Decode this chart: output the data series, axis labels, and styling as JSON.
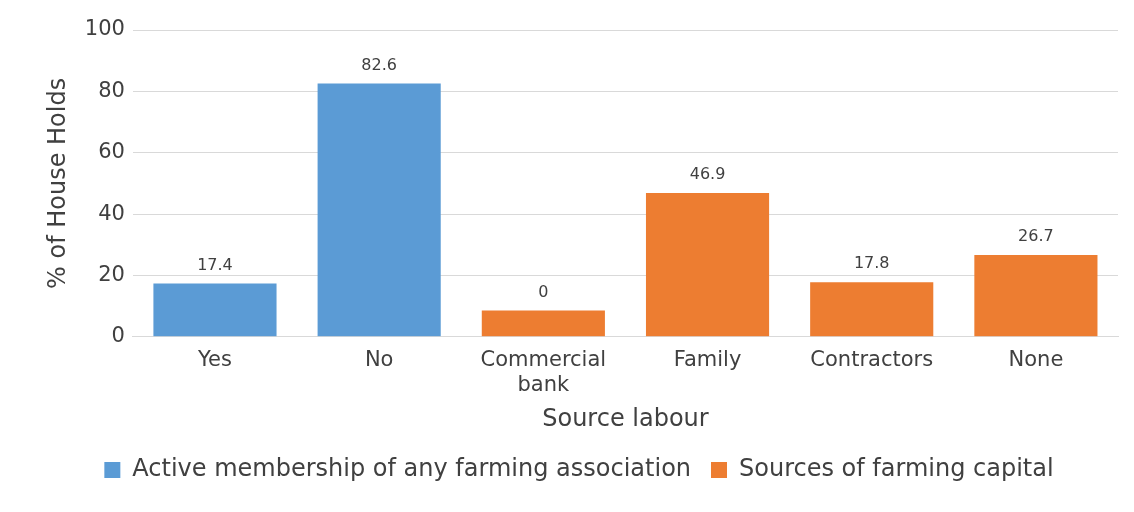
{
  "chart_data": {
    "type": "bar",
    "xlabel": "Source labour",
    "ylabel": "% of House Holds",
    "categories": [
      "Yes",
      "No",
      "Commercial bank",
      "Family",
      "Contractors",
      "None"
    ],
    "series": [
      {
        "name": "Active membership of any farming association",
        "color": "#5b9bd5",
        "values": [
          17.4,
          82.6,
          null,
          null,
          null,
          null
        ],
        "value_labels": [
          "17.4",
          "82.6",
          null,
          null,
          null,
          null
        ]
      },
      {
        "name": "Sources of farming capital",
        "color": "#ed7d31",
        "values": [
          null,
          null,
          8.6,
          46.9,
          17.8,
          26.7
        ],
        "value_labels": [
          null,
          null,
          null,
          "46.9",
          "17.8",
          "26.7"
        ]
      }
    ],
    "annotations": [
      {
        "text": "0",
        "x": "Commercial bank",
        "y": 8.6
      }
    ],
    "ylim": [
      0,
      100
    ],
    "yticks": [
      0,
      20,
      40,
      60,
      80,
      100
    ],
    "grid": "y",
    "legend": "bottom"
  }
}
